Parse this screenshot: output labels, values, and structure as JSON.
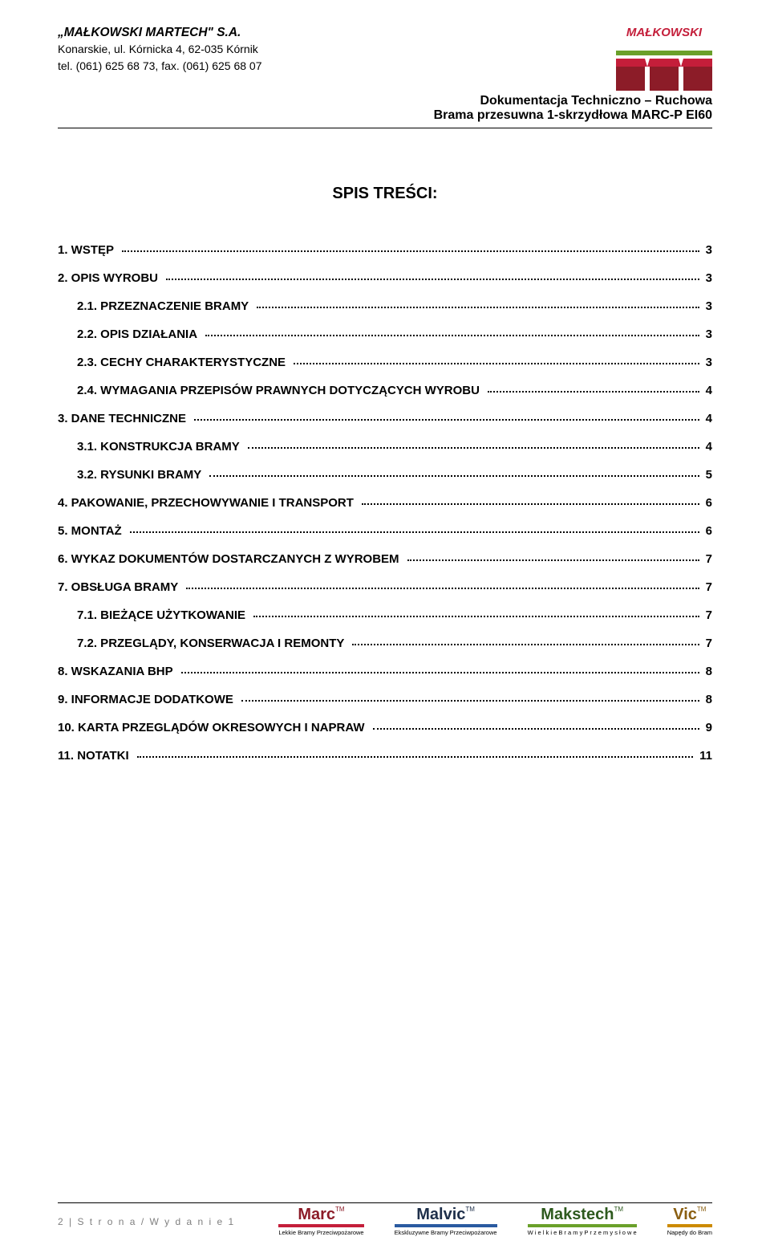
{
  "header": {
    "company": "„MAŁKOWSKI MARTECH\" S.A.",
    "address": "Konarskie, ul. Kórnicka 4, 62-035 Kórnik",
    "phone": "tel. (061) 625 68 73, fax. (061) 625 68 07",
    "doc_title_1": "Dokumentacja Techniczno – Ruchowa",
    "doc_title_2": "Brama przesuwna 1-skrzydłowa MARC-P EI60",
    "logo_brand": "MAŁKOWSKI",
    "logo_colors": {
      "brand_red": "#c41e3a",
      "dark_red": "#8c1c28",
      "green": "#6aa02a"
    }
  },
  "toc_title": "SPIS TREŚCI:",
  "toc": [
    {
      "num": "1.",
      "label": "WSTĘP",
      "page": "3",
      "level": 0
    },
    {
      "num": "2.",
      "label": "OPIS WYROBU",
      "page": "3",
      "level": 0
    },
    {
      "num": "2.1.",
      "label": "PRZEZNACZENIE BRAMY",
      "page": "3",
      "level": 1
    },
    {
      "num": "2.2.",
      "label": "OPIS DZIAŁANIA",
      "page": "3",
      "level": 1
    },
    {
      "num": "2.3.",
      "label": "CECHY CHARAKTERYSTYCZNE",
      "page": "3",
      "level": 1
    },
    {
      "num": "2.4.",
      "label": "WYMAGANIA PRZEPISÓW PRAWNYCH DOTYCZĄCYCH WYROBU",
      "page": "4",
      "level": 1
    },
    {
      "num": "3.",
      "label": "DANE TECHNICZNE",
      "page": "4",
      "level": 0
    },
    {
      "num": "3.1.",
      "label": "KONSTRUKCJA BRAMY",
      "page": "4",
      "level": 1
    },
    {
      "num": "3.2.",
      "label": "RYSUNKI   BRAMY",
      "page": "5",
      "level": 1
    },
    {
      "num": "4.",
      "label": "PAKOWANIE, PRZECHOWYWANIE I TRANSPORT",
      "page": "6",
      "level": 0
    },
    {
      "num": "5.",
      "label": "MONTAŻ",
      "page": "6",
      "level": 0
    },
    {
      "num": "6.",
      "label": "WYKAZ  DOKUMENTÓW DOSTARCZANYCH Z WYROBEM",
      "page": "7",
      "level": 0
    },
    {
      "num": "7.",
      "label": "OBSŁUGA BRAMY",
      "page": "7",
      "level": 0
    },
    {
      "num": "7.1.",
      "label": "BIEŻĄCE UŻYTKOWANIE",
      "page": "7",
      "level": 1
    },
    {
      "num": "7.2.",
      "label": "PRZEGLĄDY, KONSERWACJA I REMONTY",
      "page": "7",
      "level": 1
    },
    {
      "num": "8.",
      "label": "WSKAZANIA BHP",
      "page": "8",
      "level": 0
    },
    {
      "num": "9.",
      "label": "INFORMACJE DODATKOWE",
      "page": "8",
      "level": 0
    },
    {
      "num": "10.",
      "label": "KARTA PRZEGLĄDÓW OKRESOWYCH I NAPRAW",
      "page": "9",
      "level": 0
    },
    {
      "num": "11.",
      "label": "NOTATKI",
      "page": "11",
      "level": 0
    }
  ],
  "footer": {
    "page_label": "2 | S t r o n a / W y d a n i e   1",
    "brands": [
      {
        "name": "Marc",
        "sub": "Lekkie Bramy Przeciwpożarowe",
        "bar_color": "#c41e3a",
        "name_color": "#8c1c28"
      },
      {
        "name": "Malvic",
        "sub": "Ekskluzywne Bramy Przeciwpożarowe",
        "bar_color": "#2a5aa0",
        "name_color": "#1e2f4a"
      },
      {
        "name": "Makstech",
        "sub": "W i e l k i e   B r a m y   P r z e m y s ł o w e",
        "bar_color": "#6aa02a",
        "name_color": "#2e5a1e"
      },
      {
        "name": "Vic",
        "sub": "Napędy do Bram",
        "bar_color": "#cc8a00",
        "name_color": "#8a5e10"
      }
    ]
  }
}
